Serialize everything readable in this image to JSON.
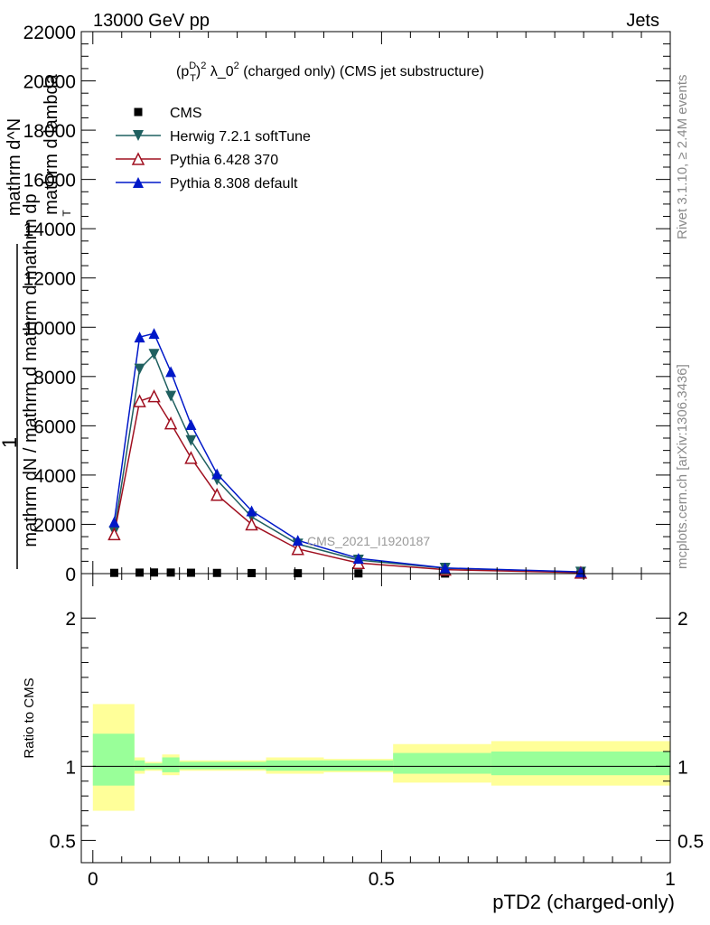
{
  "header": {
    "beam": "13000 GeV pp",
    "process": "Jets",
    "analysis": "CMS_2021_I1920187",
    "rivet": "Rivet 3.1.10, ≥ 2.4M events",
    "source": "mcplots.cern.ch [arXiv:1306.3436]"
  },
  "colors": {
    "cms": "#000000",
    "herwig": "#1f6060",
    "pythia6": "#a01020",
    "pythia8": "#0018c8",
    "band_outer": "#ffff99",
    "band_inner": "#99ff99"
  },
  "chart_data": [
    {
      "type": "line",
      "title_parts": {
        "open": "(p",
        "sup": "D",
        "sub": "T",
        "close": ")",
        "exp": "2",
        "rest": " λ_0",
        "exp2": "2",
        "tail": " (charged only) (CMS jet substructure)"
      },
      "ylabel_lines": [
        "1",
        "mathrm dN / mathrm d mathrm d mathrm dp",
        "T",
        "mathrm d lambda",
        "mathrm d^N"
      ],
      "ylim": [
        0,
        22000
      ],
      "xlim": [
        -0.02,
        1.0
      ],
      "yticks": [
        "0",
        "2000",
        "4000",
        "6000",
        "8000",
        "10000",
        "12000",
        "14000",
        "16000",
        "18000",
        "20000",
        "22000"
      ],
      "ytick_values": [
        0,
        2000,
        4000,
        6000,
        8000,
        10000,
        12000,
        14000,
        16000,
        18000,
        20000,
        22000
      ],
      "legend_placement": "top-left",
      "series": [
        {
          "name": "CMS",
          "marker": "square",
          "x": [
            0.037,
            0.081,
            0.106,
            0.135,
            0.17,
            0.215,
            0.275,
            0.355,
            0.46,
            0.61,
            0.845
          ],
          "y": [
            30,
            40,
            45,
            42,
            35,
            28,
            22,
            15,
            8,
            3,
            1
          ]
        },
        {
          "name": "Herwig 7.2.1 softTune",
          "marker": "triangle-down",
          "x": [
            0.037,
            0.081,
            0.106,
            0.135,
            0.17,
            0.215,
            0.275,
            0.355,
            0.46,
            0.61,
            0.845
          ],
          "y": [
            1700,
            8300,
            8900,
            7200,
            5400,
            3800,
            2300,
            1200,
            550,
            220,
            60
          ]
        },
        {
          "name": "Pythia 6.428 370",
          "marker": "triangle-up-open",
          "x": [
            0.037,
            0.081,
            0.106,
            0.135,
            0.17,
            0.215,
            0.275,
            0.355,
            0.46,
            0.61,
            0.845
          ],
          "y": [
            1600,
            7000,
            7200,
            6100,
            4700,
            3200,
            2000,
            1000,
            430,
            160,
            40
          ]
        },
        {
          "name": "Pythia 8.308 default",
          "marker": "triangle-up",
          "x": [
            0.037,
            0.081,
            0.106,
            0.135,
            0.17,
            0.215,
            0.275,
            0.355,
            0.46,
            0.61,
            0.845
          ],
          "y": [
            2100,
            9600,
            9750,
            8200,
            6050,
            4050,
            2550,
            1350,
            620,
            230,
            70
          ]
        }
      ]
    },
    {
      "type": "area",
      "ylabel": "Ratio to CMS",
      "xlabel": "pTD2 (charged-only)",
      "ylim": [
        0.35,
        2.3
      ],
      "yticks": [
        "0.5",
        "1",
        "2"
      ],
      "ytick_values": [
        0.5,
        1,
        2
      ],
      "xticks": [
        "0",
        "0.5",
        "1"
      ],
      "xtick_values": [
        0,
        0.5,
        1
      ],
      "bins": [
        {
          "x0": 0.0,
          "x1": 0.072,
          "outer": [
            0.7,
            1.42
          ],
          "inner": [
            0.87,
            1.22
          ]
        },
        {
          "x0": 0.072,
          "x1": 0.09,
          "outer": [
            0.95,
            1.06
          ],
          "inner": [
            0.97,
            1.04
          ]
        },
        {
          "x0": 0.09,
          "x1": 0.12,
          "outer": [
            0.97,
            1.03
          ],
          "inner": [
            0.98,
            1.02
          ]
        },
        {
          "x0": 0.12,
          "x1": 0.15,
          "outer": [
            0.94,
            1.08
          ],
          "inner": [
            0.96,
            1.06
          ]
        },
        {
          "x0": 0.15,
          "x1": 0.3,
          "outer": [
            0.97,
            1.04
          ],
          "inner": [
            0.98,
            1.03
          ]
        },
        {
          "x0": 0.3,
          "x1": 0.4,
          "outer": [
            0.95,
            1.06
          ],
          "inner": [
            0.97,
            1.04
          ]
        },
        {
          "x0": 0.4,
          "x1": 0.52,
          "outer": [
            0.96,
            1.05
          ],
          "inner": [
            0.97,
            1.04
          ]
        },
        {
          "x0": 0.52,
          "x1": 0.69,
          "outer": [
            0.89,
            1.15
          ],
          "inner": [
            0.95,
            1.09
          ]
        },
        {
          "x0": 0.69,
          "x1": 1.0,
          "outer": [
            0.87,
            1.17
          ],
          "inner": [
            0.94,
            1.1
          ]
        }
      ]
    }
  ]
}
